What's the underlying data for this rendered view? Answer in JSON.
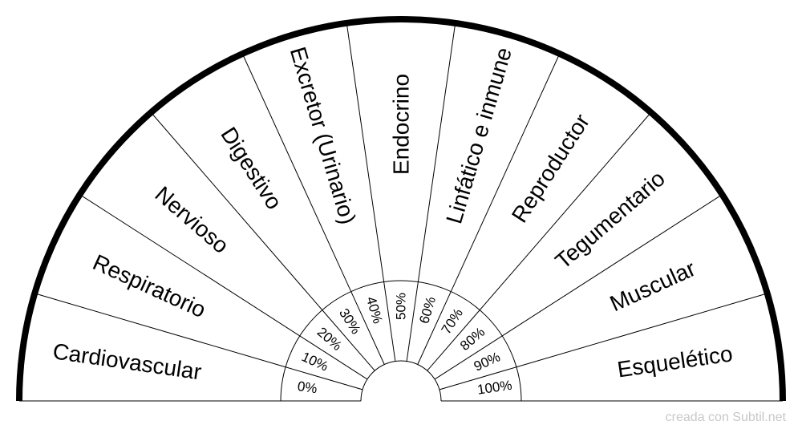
{
  "sectors": [
    "Cardiovascular",
    "Respiratorio",
    "Nervioso",
    "Digestivo",
    "Excretor (Urinario)",
    "Endocrino",
    "Linfático e inmune",
    "Reproductor",
    "Tegumentario",
    "Muscular",
    "Esquelético"
  ],
  "percentages": [
    "0%",
    "10%",
    "20%",
    "30%",
    "40%",
    "50%",
    "60%",
    "70%",
    "80%",
    "90%",
    "100%"
  ],
  "credit": "creada con Subtil.net",
  "colors": {
    "line": "#000000",
    "background": "#ffffff",
    "credit": "#c8c8c8"
  }
}
